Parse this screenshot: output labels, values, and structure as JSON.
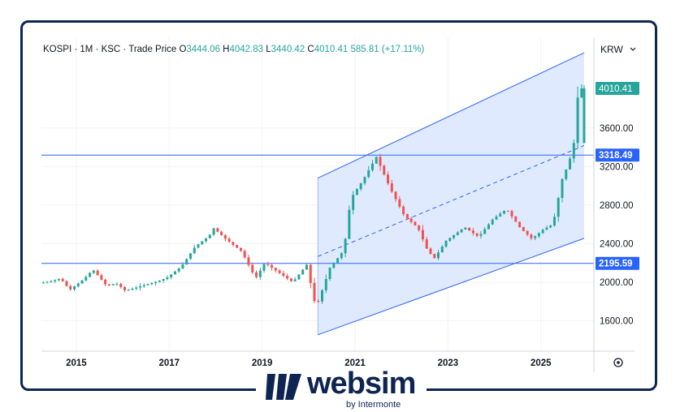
{
  "header": {
    "symbol": "KOSPI",
    "interval": "1M",
    "exchange": "KSC",
    "price_type": "Trade Price",
    "ohlc": {
      "o_label": "O",
      "o": "3444.06",
      "h_label": "H",
      "h": "4042.83",
      "l_label": "L",
      "l": "3440.42",
      "c_label": "C",
      "c": "4010.41",
      "change": "585.81 (+17.11%)"
    }
  },
  "currency_selector": {
    "label": "KRW",
    "icon": "chevron-down-icon"
  },
  "settings_icon": "gear-icon",
  "colors": {
    "up": "#26a69a",
    "down": "#ef5350",
    "line": "#2962ff",
    "channel_fill": "#dbe6ff",
    "brand": "#0e2451"
  },
  "price_badges": {
    "last": "4010.41",
    "level_high": "3318.49",
    "level_low": "2195.59"
  },
  "branding": {
    "wordmark": "websim",
    "tagline": "by Intermonte"
  },
  "chart_data": {
    "type": "candlestick",
    "y_ticks": [
      "1600.00",
      "2000.00",
      "2400.00",
      "2800.00",
      "3200.00",
      "3600.00"
    ],
    "x_ticks": [
      "2015",
      "2017",
      "2019",
      "2021",
      "2023",
      "2025"
    ],
    "ylim": [
      1285,
      4540
    ],
    "xlim": [
      2014.25,
      2026.14
    ],
    "horizontal_levels": [
      3318.49,
      2195.59
    ],
    "channel": {
      "start": [
        2020.2,
        3080,
        1455
      ],
      "end": [
        2025.93,
        4380,
        2455
      ],
      "middle_dashed": true
    },
    "ohlc_yearly_path": [
      [
        2014.25,
        1990
      ],
      [
        2014.5,
        2010
      ],
      [
        2014.7,
        2040
      ],
      [
        2014.9,
        1920
      ],
      [
        2015.2,
        2030
      ],
      [
        2015.4,
        2130
      ],
      [
        2015.7,
        1960
      ],
      [
        2015.9,
        1990
      ],
      [
        2016.1,
        1910
      ],
      [
        2016.5,
        1970
      ],
      [
        2016.8,
        2010
      ],
      [
        2017.0,
        2050
      ],
      [
        2017.3,
        2160
      ],
      [
        2017.6,
        2370
      ],
      [
        2017.9,
        2480
      ],
      [
        2018.0,
        2560
      ],
      [
        2018.3,
        2430
      ],
      [
        2018.6,
        2320
      ],
      [
        2018.9,
        2040
      ],
      [
        2019.1,
        2200
      ],
      [
        2019.4,
        2100
      ],
      [
        2019.7,
        2000
      ],
      [
        2020.0,
        2180
      ],
      [
        2020.2,
        1730
      ],
      [
        2020.5,
        2150
      ],
      [
        2020.8,
        2330
      ],
      [
        2020.95,
        2870
      ],
      [
        2021.2,
        3050
      ],
      [
        2021.5,
        3300
      ],
      [
        2021.8,
        2970
      ],
      [
        2022.1,
        2690
      ],
      [
        2022.4,
        2560
      ],
      [
        2022.6,
        2330
      ],
      [
        2022.75,
        2250
      ],
      [
        2023.0,
        2430
      ],
      [
        2023.4,
        2570
      ],
      [
        2023.7,
        2470
      ],
      [
        2024.0,
        2650
      ],
      [
        2024.3,
        2760
      ],
      [
        2024.6,
        2560
      ],
      [
        2024.85,
        2450
      ],
      [
        2025.1,
        2550
      ],
      [
        2025.3,
        2600
      ],
      [
        2025.5,
        3070
      ],
      [
        2025.65,
        3250
      ],
      [
        2025.75,
        3444
      ],
      [
        2025.85,
        4010
      ]
    ]
  }
}
